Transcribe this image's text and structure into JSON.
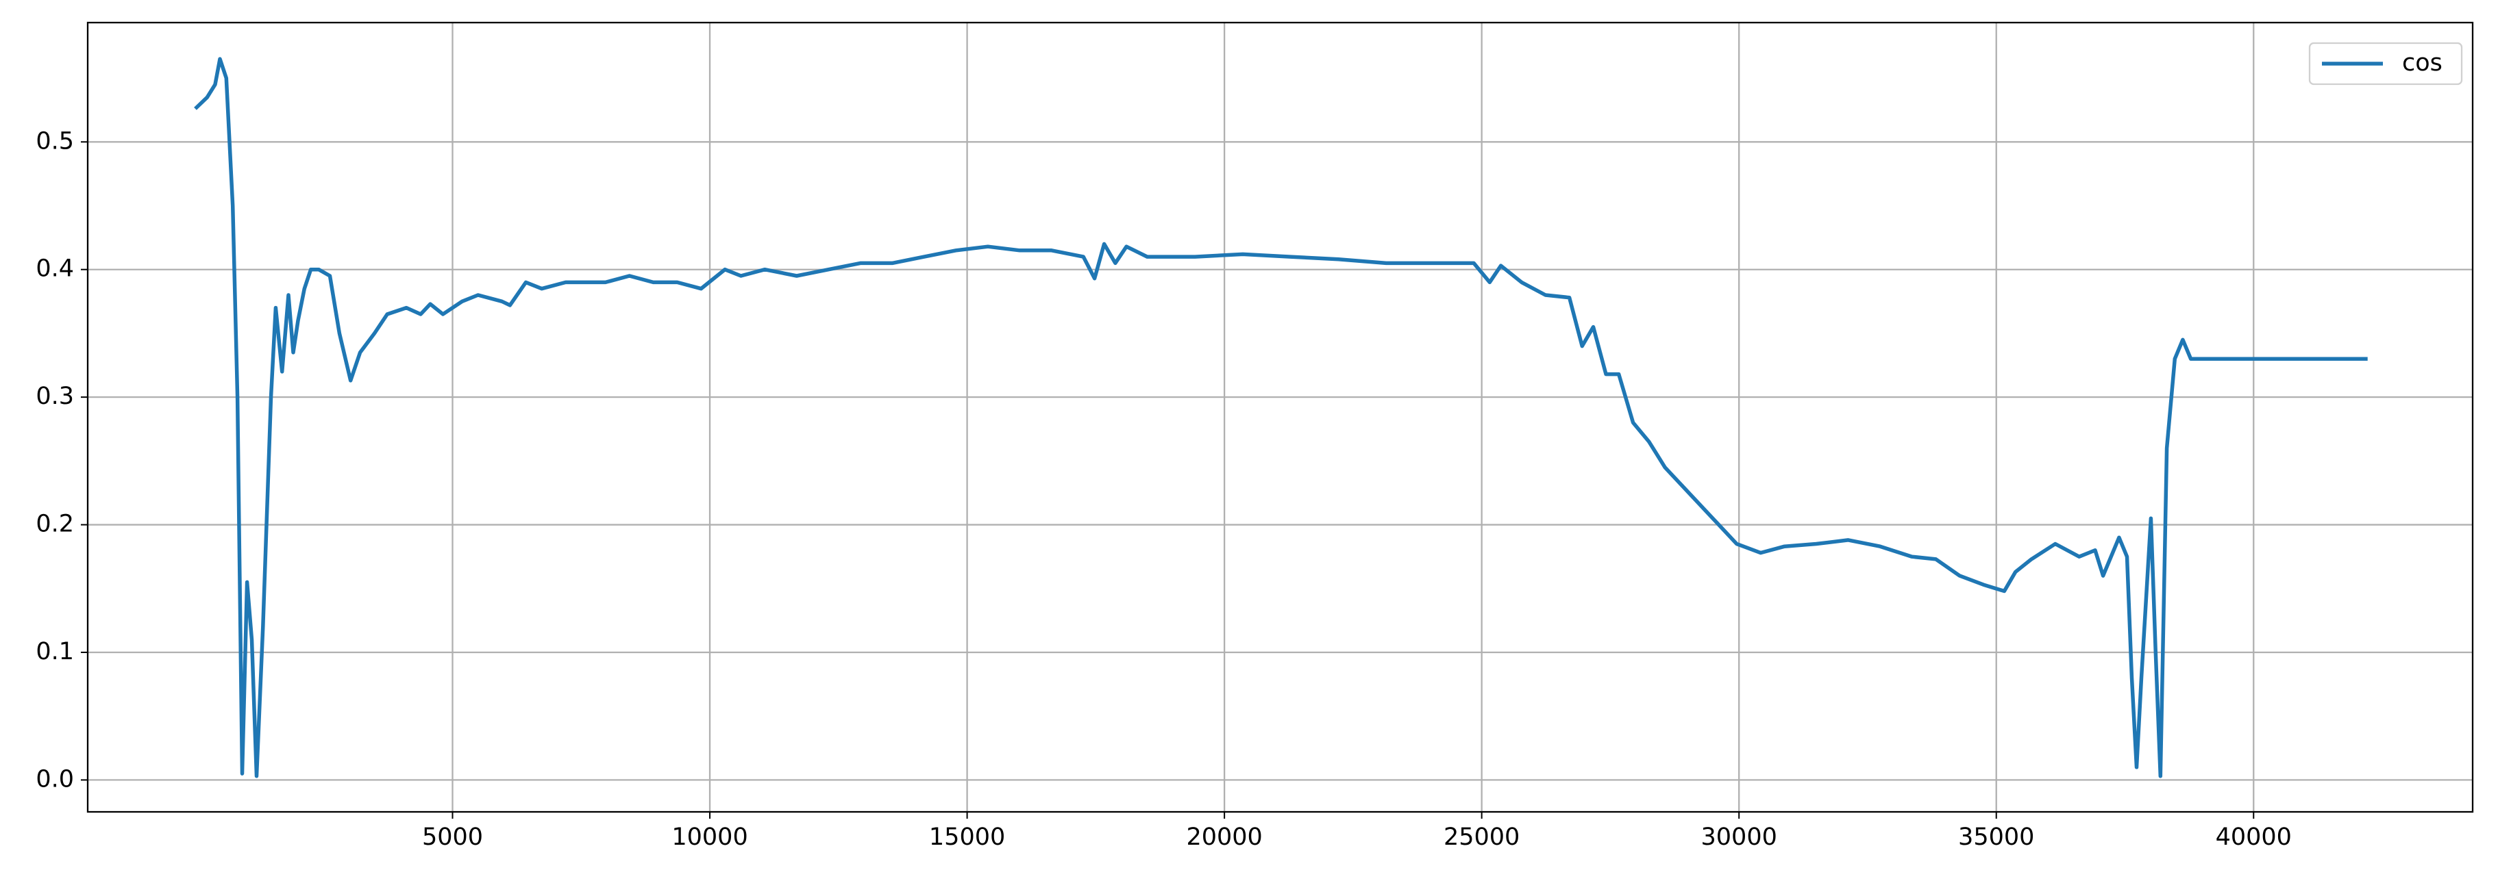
{
  "chart_data": {
    "type": "line",
    "x": [
      0,
      232,
      387,
      480,
      604,
      728,
      820,
      913,
      1007,
      1099,
      1192,
      1316,
      1471,
      1564,
      1687,
      1811,
      1904,
      1997,
      2121,
      2245,
      2399,
      2616,
      2802,
      3019,
      3204,
      3483,
      3731,
      4102,
      4381,
      4567,
      4814,
      5186,
      5495,
      5960,
      6115,
      6424,
      6734,
      7198,
      7972,
      8437,
      8901,
      9365,
      9830,
      10294,
      10604,
      11068,
      11687,
      12307,
      12926,
      13545,
      14164,
      14783,
      15403,
      16022,
      16641,
      17260,
      17477,
      17663,
      17880,
      18096,
      18499,
      19428,
      20357,
      21285,
      22214,
      23143,
      24072,
      24846,
      25155,
      25372,
      25775,
      26239,
      26703,
      26951,
      27168,
      27415,
      27663,
      27942,
      28252,
      28561,
      29026,
      29490,
      29955,
      30419,
      30884,
      31503,
      32122,
      32741,
      33360,
      33825,
      34289,
      34753,
      35156,
      35372,
      35682,
      36146,
      36611,
      36921,
      37075,
      37385,
      37540,
      37633,
      37726,
      37819,
      38004,
      38097,
      38190,
      38314,
      38469,
      38624,
      38779,
      42216
    ],
    "series": [
      {
        "name": "cos",
        "color": "#1f77b4",
        "values": [
          0.526,
          0.535,
          0.545,
          0.565,
          0.55,
          0.45,
          0.3,
          0.005,
          0.155,
          0.11,
          0.003,
          0.12,
          0.3,
          0.37,
          0.32,
          0.38,
          0.335,
          0.36,
          0.385,
          0.4,
          0.4,
          0.395,
          0.35,
          0.313,
          0.335,
          0.35,
          0.365,
          0.37,
          0.365,
          0.373,
          0.365,
          0.375,
          0.38,
          0.375,
          0.372,
          0.39,
          0.385,
          0.39,
          0.39,
          0.395,
          0.39,
          0.39,
          0.385,
          0.4,
          0.395,
          0.4,
          0.395,
          0.4,
          0.405,
          0.405,
          0.41,
          0.415,
          0.418,
          0.415,
          0.415,
          0.41,
          0.393,
          0.42,
          0.405,
          0.418,
          0.41,
          0.41,
          0.412,
          0.41,
          0.408,
          0.405,
          0.405,
          0.405,
          0.39,
          0.403,
          0.39,
          0.38,
          0.378,
          0.34,
          0.355,
          0.318,
          0.318,
          0.28,
          0.265,
          0.245,
          0.225,
          0.205,
          0.185,
          0.178,
          0.183,
          0.185,
          0.188,
          0.183,
          0.175,
          0.173,
          0.16,
          0.153,
          0.148,
          0.163,
          0.173,
          0.185,
          0.175,
          0.18,
          0.16,
          0.19,
          0.175,
          0.08,
          0.01,
          0.08,
          0.205,
          0.1,
          0.003,
          0.26,
          0.33,
          0.345,
          0.33,
          0.33
        ]
      }
    ],
    "xlim": [
      -2090,
      44257
    ],
    "xticks": [
      5000,
      10000,
      15000,
      20000,
      25000,
      30000,
      35000,
      40000
    ],
    "ylim": [
      -0.025,
      0.5935
    ],
    "yticks": [
      0.0,
      0.1,
      0.2,
      0.3,
      0.4,
      0.5
    ],
    "grid": true,
    "legend": "upper right"
  }
}
